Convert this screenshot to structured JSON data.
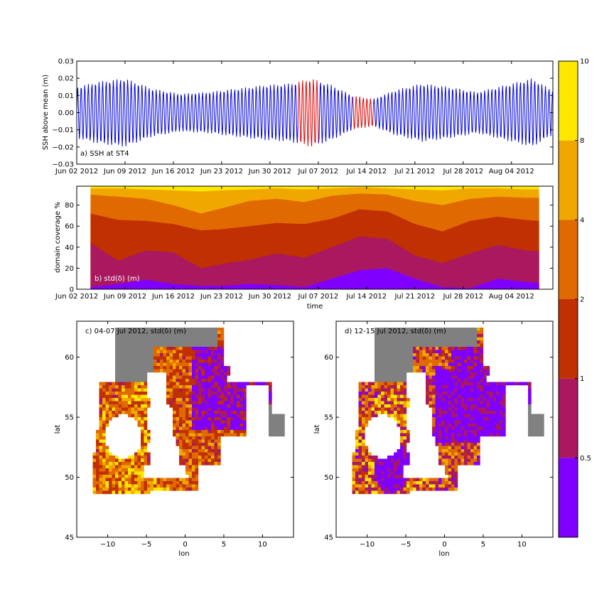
{
  "colors": {
    "ssh_normal": "#0000dd",
    "ssh_highlight": "#dd0000",
    "coverage_bands": [
      "#8000ff",
      "#aa1860",
      "#c03000",
      "#e06a00",
      "#f0a800",
      "#ffe800"
    ],
    "land": "#808080"
  },
  "colorbar": {
    "ticks": [
      "10",
      "8",
      "4",
      "2",
      "1",
      "0.5"
    ],
    "colors_top_to_bottom": [
      "#ffe800",
      "#f0a800",
      "#e06a00",
      "#c03000",
      "#aa1860",
      "#8000ff"
    ]
  },
  "date_ticks": [
    "Jun 02 2012",
    "Jun 09 2012",
    "Jun 16 2012",
    "Jun 23 2012",
    "Jun 30 2012",
    "Jul 07 2012",
    "Jul 14 2012",
    "Jul 21 2012",
    "Jul 28 2012",
    "Aug 04 2012"
  ],
  "chart_data": [
    {
      "type": "line",
      "panel": "a",
      "annotation": "a) SSH at ST4",
      "ylabel": "SSH above mean (m)",
      "xlabel": "",
      "xlim": [
        "2012-06-02",
        "2012-08-10"
      ],
      "ylim": [
        -0.03,
        0.03
      ],
      "yticks": [
        "0.03",
        "0.02",
        "0.01",
        "0.00",
        "−0.01",
        "−0.02",
        "−0.03"
      ],
      "amplitude_envelope": {
        "dates": [
          "2012-06-02",
          "2012-06-05",
          "2012-06-09",
          "2012-06-13",
          "2012-06-17",
          "2012-06-21",
          "2012-06-25",
          "2012-06-29",
          "2012-07-03",
          "2012-07-06",
          "2012-07-09",
          "2012-07-12",
          "2012-07-15",
          "2012-07-18",
          "2012-07-22",
          "2012-07-26",
          "2012-07-30",
          "2012-08-03",
          "2012-08-07",
          "2012-08-10"
        ],
        "amplitude_m": [
          0.015,
          0.018,
          0.02,
          0.014,
          0.011,
          0.012,
          0.014,
          0.016,
          0.017,
          0.02,
          0.016,
          0.01,
          0.008,
          0.013,
          0.017,
          0.015,
          0.012,
          0.016,
          0.02,
          0.013
        ]
      },
      "highlight_ranges": [
        [
          "2012-07-04",
          "2012-07-07"
        ],
        [
          "2012-07-12",
          "2012-07-15"
        ]
      ]
    },
    {
      "type": "area",
      "panel": "b",
      "annotation": "b) std(δ) (m)",
      "xlabel": "time",
      "ylabel": "domain coverage %",
      "xlim": [
        "2012-06-02",
        "2012-08-10"
      ],
      "ylim": [
        0,
        98
      ],
      "yticks": [
        "80",
        "60",
        "40",
        "20",
        "0"
      ],
      "x": [
        "2012-06-04",
        "2012-06-08",
        "2012-06-12",
        "2012-06-16",
        "2012-06-20",
        "2012-06-23",
        "2012-06-27",
        "2012-07-01",
        "2012-07-05",
        "2012-07-09",
        "2012-07-13",
        "2012-07-17",
        "2012-07-21",
        "2012-07-25",
        "2012-07-29",
        "2012-08-02",
        "2012-08-06",
        "2012-08-08"
      ],
      "cumulative_boundaries": [
        {
          "name": "0.5",
          "values": [
            2,
            5,
            9,
            5,
            3,
            3,
            5,
            4,
            2,
            10,
            18,
            20,
            10,
            2,
            1,
            10,
            7,
            6
          ]
        },
        {
          "name": "1",
          "values": [
            44,
            27,
            37,
            35,
            20,
            24,
            28,
            34,
            30,
            40,
            50,
            48,
            32,
            25,
            34,
            42,
            37,
            36
          ]
        },
        {
          "name": "2",
          "values": [
            72,
            66,
            65,
            62,
            56,
            57,
            60,
            63,
            62,
            67,
            76,
            74,
            62,
            55,
            65,
            69,
            66,
            65
          ]
        },
        {
          "name": "4",
          "values": [
            90,
            88,
            86,
            80,
            72,
            77,
            84,
            86,
            83,
            89,
            91,
            90,
            84,
            80,
            86,
            88,
            87,
            87
          ]
        },
        {
          "name": "8",
          "values": [
            96,
            96,
            95,
            94,
            93,
            94,
            95,
            96,
            95,
            96,
            97,
            96,
            95,
            94,
            96,
            96,
            95,
            95
          ]
        },
        {
          "name": "10",
          "values": [
            98,
            98,
            98,
            98,
            98,
            98,
            98,
            98,
            98,
            98,
            98,
            98,
            98,
            98,
            98,
            98,
            98,
            98
          ]
        }
      ]
    },
    {
      "type": "heatmap",
      "panel": "c",
      "annotation": "c) 04-07 Jul 2012, std(δ) (m)",
      "xlabel": "lon",
      "ylabel": "lat",
      "xlim": [
        -14,
        14
      ],
      "ylim": [
        45,
        63
      ],
      "xticks": [
        "−10",
        "−5",
        "0",
        "5",
        "10"
      ],
      "yticks": [
        "60",
        "55",
        "50",
        "45"
      ]
    },
    {
      "type": "heatmap",
      "panel": "d",
      "annotation": "d) 12-15 Jul 2012, std(δ) (m)",
      "xlabel": "lon",
      "ylabel": "lat",
      "xlim": [
        -14,
        14
      ],
      "ylim": [
        45,
        63
      ],
      "xticks": [
        "−10",
        "−5",
        "0",
        "5",
        "10"
      ],
      "yticks": [
        "60",
        "55",
        "50",
        "45"
      ]
    }
  ]
}
